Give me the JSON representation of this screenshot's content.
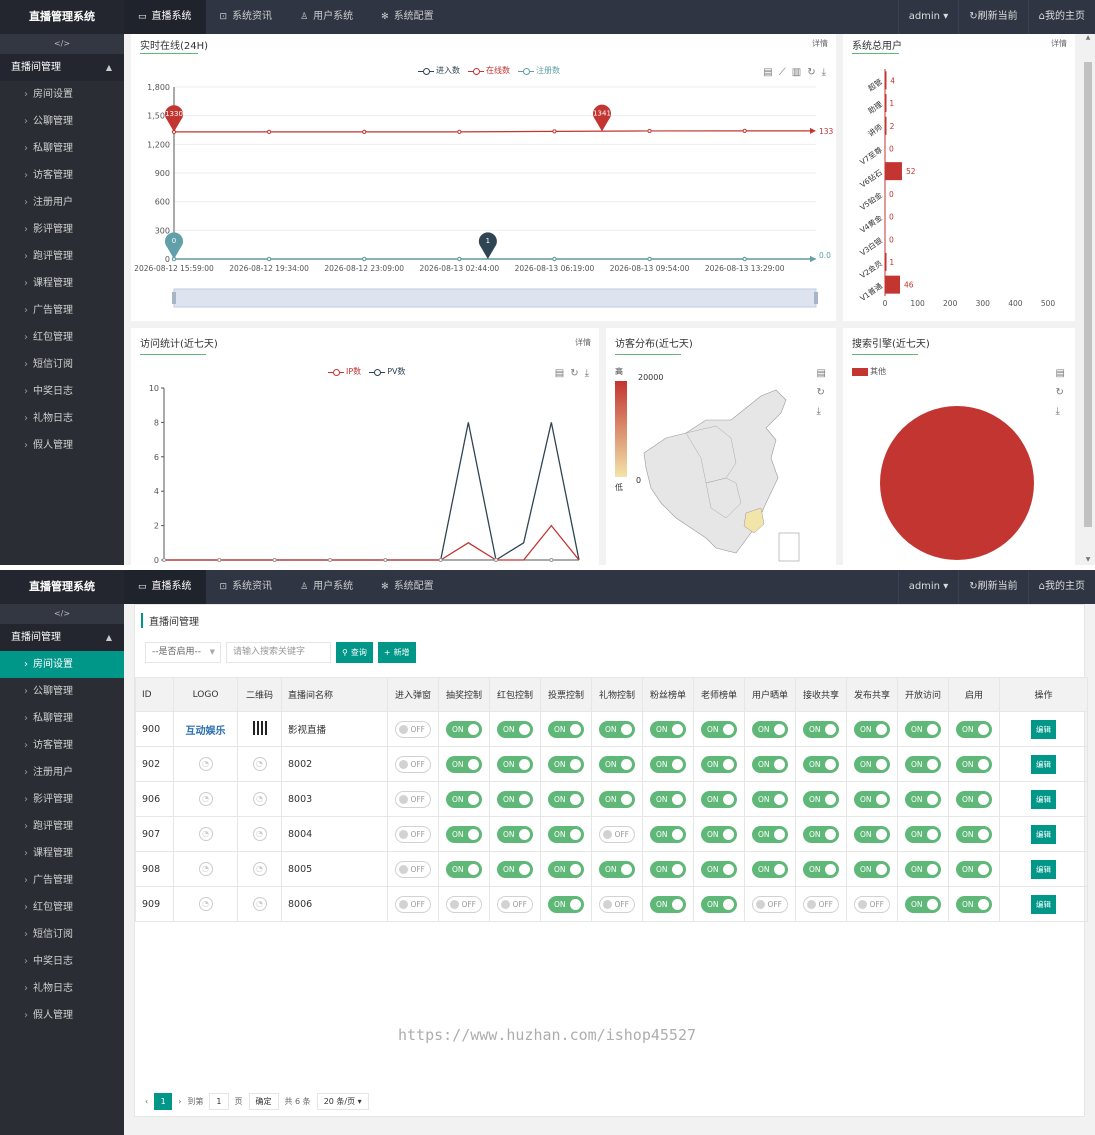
{
  "app": {
    "title": "直播管理系统",
    "nav": [
      "直播系统",
      "系统资讯",
      "用户系统",
      "系统配置"
    ],
    "admin": "admin",
    "refresh": "刷新当前",
    "home": "我的主页",
    "toggle": "</>"
  },
  "sidebar": {
    "group": "直播间管理",
    "items": [
      "房间设置",
      "公聊管理",
      "私聊管理",
      "访客管理",
      "注册用户",
      "影评管理",
      "跑评管理",
      "课程管理",
      "广告管理",
      "红包管理",
      "短信订阅",
      "中奖日志",
      "礼物日志",
      "假人管理"
    ]
  },
  "colors": {
    "accent": "#009688",
    "red": "#c23531",
    "dark": "#2f4554",
    "teal": "#61a0a8",
    "on": "#5fb878"
  },
  "dashboard": {
    "more": "详情",
    "online": {
      "title": "实时在线(24H)",
      "legend": [
        "进入数",
        "在线数",
        "注册数"
      ]
    },
    "users": {
      "title": "系统总用户"
    },
    "visits": {
      "title": "访问统计(近七天)",
      "legend": [
        "IP数",
        "PV数"
      ]
    },
    "map": {
      "title": "访客分布(近七天)",
      "high": "高",
      "low": "低",
      "max": "20000",
      "min": "0"
    },
    "search": {
      "title": "搜索引擎(近七天)",
      "legend": [
        "其他"
      ]
    }
  },
  "chart_data": [
    {
      "type": "line",
      "title": "实时在线(24H)",
      "x": [
        "2026-08-12 15:59:00",
        "2026-08-12 19:34:00",
        "2026-08-12 23:09:00",
        "2026-08-13 02:44:00",
        "2026-08-13 06:19:00",
        "2026-08-13 09:54:00",
        "2026-08-13 13:29:00"
      ],
      "ylim": [
        0,
        1800
      ],
      "yticks": [
        "0",
        "300",
        "600",
        "900",
        "1,200",
        "1,500",
        "1,800"
      ],
      "series": [
        {
          "name": "进入数",
          "values": [
            0,
            0,
            0,
            0,
            0,
            0,
            0
          ],
          "color": "#2f4554"
        },
        {
          "name": "在线数",
          "values": [
            1330,
            1330,
            1330,
            1330,
            1336,
            1340,
            1341
          ],
          "color": "#c23531"
        },
        {
          "name": "注册数",
          "values": [
            0,
            0,
            0,
            0,
            0,
            0,
            0
          ],
          "color": "#61a0a8"
        }
      ],
      "markers": [
        {
          "label": "1330",
          "series": "在线数",
          "index": 0
        },
        {
          "label": "1341",
          "series": "在线数",
          "index": 4.5
        },
        {
          "label": "0",
          "series": "注册数",
          "index": 0
        },
        {
          "label": "1",
          "series": "进入数",
          "index": 3.3
        }
      ],
      "end_labels": [
        "133",
        "0.0"
      ]
    },
    {
      "type": "bar",
      "title": "系统总用户",
      "orientation": "horizontal",
      "categories": [
        "超管",
        "助理",
        "讲师",
        "V7至尊",
        "V6钻石",
        "V5铂金",
        "V4黄金",
        "V3白银",
        "V2会员",
        "V1普通"
      ],
      "values": [
        4,
        1,
        2,
        0,
        52,
        0,
        0,
        0,
        1,
        46
      ],
      "xlim": [
        0,
        500
      ],
      "xticks": [
        "0",
        "100",
        "200",
        "300",
        "400",
        "500"
      ]
    },
    {
      "type": "line",
      "title": "访问统计(近七天)",
      "ylim": [
        0,
        10
      ],
      "yticks": [
        "0",
        "2",
        "4",
        "6",
        "8",
        "10"
      ],
      "series": [
        {
          "name": "IP数",
          "values": [
            0,
            0,
            0,
            0,
            0,
            0,
            0,
            0,
            0,
            0,
            0,
            1,
            0,
            0,
            2,
            0
          ],
          "color": "#c23531"
        },
        {
          "name": "PV数",
          "values": [
            0,
            0,
            0,
            0,
            0,
            0,
            0,
            0,
            0,
            0,
            0,
            8,
            0,
            1,
            8,
            0
          ],
          "color": "#2f4554"
        }
      ]
    },
    {
      "type": "pie",
      "title": "搜索引擎(近七天)",
      "categories": [
        "其他"
      ],
      "values": [
        100
      ]
    }
  ],
  "list": {
    "crumb": "直播间管理",
    "filter_placeholder": "--是否启用--",
    "search_placeholder": "请输入搜索关键字",
    "search_btn": "查询",
    "add_btn": "新增",
    "columns": [
      "ID",
      "LOGO",
      "二维码",
      "直播间名称",
      "进入弹窗",
      "抽奖控制",
      "红包控制",
      "投票控制",
      "礼物控制",
      "粉丝榜单",
      "老师榜单",
      "用户晒单",
      "接收共享",
      "发布共享",
      "开放访问",
      "启用",
      "操作"
    ],
    "on": "ON",
    "off": "OFF",
    "edit": "编辑",
    "logo_text": "互动娱乐",
    "rows": [
      {
        "id": "900",
        "name": "影视直播",
        "sw": [
          0,
          1,
          1,
          1,
          1,
          1,
          1,
          1,
          1,
          1,
          1,
          1
        ]
      },
      {
        "id": "902",
        "name": "8002",
        "sw": [
          0,
          1,
          1,
          1,
          1,
          1,
          1,
          1,
          1,
          1,
          1,
          1
        ]
      },
      {
        "id": "906",
        "name": "8003",
        "sw": [
          0,
          1,
          1,
          1,
          1,
          1,
          1,
          1,
          1,
          1,
          1,
          1
        ]
      },
      {
        "id": "907",
        "name": "8004",
        "sw": [
          0,
          1,
          1,
          1,
          0,
          1,
          1,
          1,
          1,
          1,
          1,
          1
        ]
      },
      {
        "id": "908",
        "name": "8005",
        "sw": [
          0,
          1,
          1,
          1,
          1,
          1,
          1,
          1,
          1,
          1,
          1,
          1
        ]
      },
      {
        "id": "909",
        "name": "8006",
        "sw": [
          0,
          0,
          0,
          1,
          0,
          1,
          1,
          0,
          0,
          0,
          1,
          1
        ]
      }
    ],
    "pager": {
      "page": "1",
      "goto": "到第",
      "page_unit": "页",
      "confirm": "确定",
      "total": "共 6 条",
      "per_page": "20 条/页"
    }
  },
  "watermark": "https://www.huzhan.com/ishop45527"
}
